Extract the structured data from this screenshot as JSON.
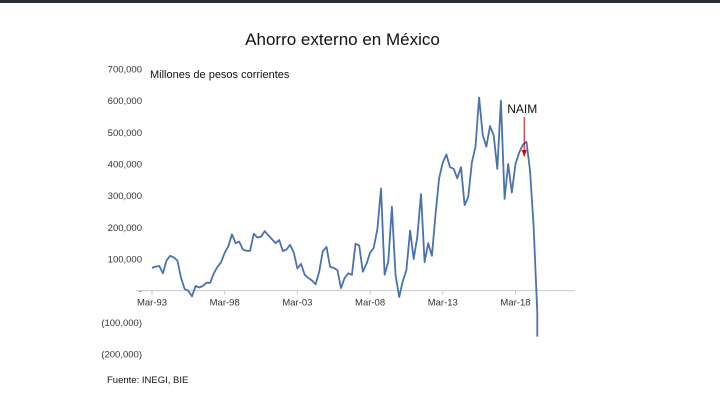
{
  "chart_data": {
    "type": "line",
    "title": "Ahorro externo en México",
    "ylabel": "Millones de pesos corrientes",
    "source": "Fuente: INEGI, BIE",
    "annotation": {
      "text": "NAIM",
      "x": 2018.6,
      "color_arrow": "#cc0000"
    },
    "yticks": [
      {
        "value": 700000,
        "label": "700,000"
      },
      {
        "value": 600000,
        "label": "600,000"
      },
      {
        "value": 500000,
        "label": "500,000"
      },
      {
        "value": 400000,
        "label": "400,000"
      },
      {
        "value": 300000,
        "label": "300,000"
      },
      {
        "value": 200000,
        "label": "200,000"
      },
      {
        "value": 100000,
        "label": "100,000"
      },
      {
        "value": 0,
        "label": "-"
      },
      {
        "value": -100000,
        "label": "(100,000)"
      },
      {
        "value": -200000,
        "label": "(200,000)"
      }
    ],
    "xticks": [
      {
        "value": 1993,
        "label": "Mar-93"
      },
      {
        "value": 1998,
        "label": "Mar-98"
      },
      {
        "value": 2003,
        "label": "Mar-03"
      },
      {
        "value": 2008,
        "label": "Mar-08"
      },
      {
        "value": 2013,
        "label": "Mar-13"
      },
      {
        "value": 2018,
        "label": "Mar-18"
      }
    ],
    "xlim": [
      1993,
      2021.2
    ],
    "ylim": [
      -200000,
      700000
    ],
    "line_color": "#4a72b0",
    "series": [
      {
        "x": [
          1993.0,
          1993.25,
          1993.5,
          1993.75,
          1994.0,
          1994.25,
          1994.5,
          1994.75,
          1995.0,
          1995.25,
          1995.5,
          1995.75,
          1996.0,
          1996.25,
          1996.5,
          1996.75,
          1997.0,
          1997.25,
          1997.5,
          1997.75,
          1998.0,
          1998.25,
          1998.5,
          1998.75,
          1999.0,
          1999.25,
          1999.5,
          1999.75,
          2000.0,
          2000.25,
          2000.5,
          2000.75,
          2001.0,
          2001.25,
          2001.5,
          2001.75,
          2002.0,
          2002.25,
          2002.5,
          2002.75,
          2003.0,
          2003.25,
          2003.5,
          2003.75,
          2004.0,
          2004.25,
          2004.5,
          2004.75,
          2005.0,
          2005.25,
          2005.5,
          2005.75,
          2006.0,
          2006.25,
          2006.5,
          2006.75,
          2007.0,
          2007.25,
          2007.5,
          2007.75,
          2008.0,
          2008.25,
          2008.5,
          2008.75,
          2009.0,
          2009.25,
          2009.5,
          2009.75,
          2010.0,
          2010.25,
          2010.5,
          2010.75,
          2011.0,
          2011.25,
          2011.5,
          2011.75,
          2012.0,
          2012.25,
          2012.5,
          2012.75,
          2013.0,
          2013.25,
          2013.5,
          2013.75,
          2014.0,
          2014.25,
          2014.5,
          2014.75,
          2015.0,
          2015.25,
          2015.5,
          2015.75,
          2016.0,
          2016.25,
          2016.5,
          2016.75,
          2017.0,
          2017.25,
          2017.5,
          2017.75,
          2018.0,
          2018.25,
          2018.5,
          2018.75,
          2019.0,
          2019.25,
          2019.5,
          2019.75,
          2020.0
        ],
        "y": [
          72000,
          76000,
          78000,
          55000,
          95000,
          110000,
          105000,
          95000,
          40000,
          5000,
          0,
          -18000,
          15000,
          10000,
          15000,
          25000,
          25000,
          55000,
          75000,
          90000,
          120000,
          140000,
          178000,
          150000,
          155000,
          130000,
          126000,
          126000,
          180000,
          168000,
          170000,
          188000,
          175000,
          163000,
          150000,
          160000,
          125000,
          130000,
          145000,
          120000,
          70000,
          85000,
          50000,
          40000,
          32000,
          20000,
          60000,
          125000,
          138000,
          75000,
          72000,
          65000,
          8000,
          40000,
          55000,
          50000,
          148000,
          143000,
          60000,
          85000,
          120000,
          135000,
          195000,
          323000,
          50000,
          92000,
          265000,
          50000,
          -20000,
          30000,
          65000,
          190000,
          100000,
          170000,
          305000,
          90000,
          150000,
          110000,
          240000,
          355000,
          405000,
          430000,
          390000,
          385000,
          355000,
          390000,
          270000,
          295000,
          405000,
          455000,
          610000,
          490000,
          455000,
          520000,
          490000,
          385000,
          600000,
          290000,
          400000,
          310000,
          400000,
          435000,
          460000,
          470000,
          380000,
          205000,
          -70000,
          -140000,
          -145000
        ],
        "plot_until": 2019.5
      }
    ]
  }
}
